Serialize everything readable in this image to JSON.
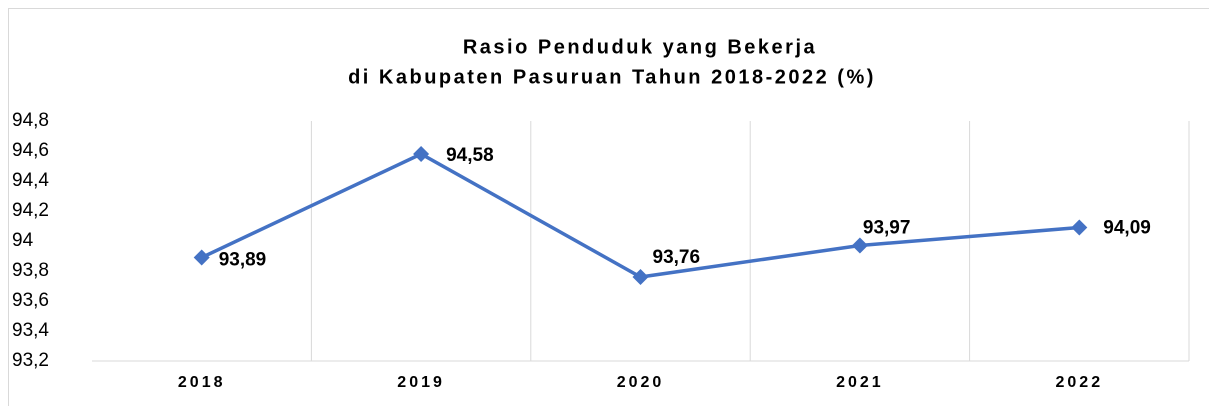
{
  "chart_data": {
    "type": "line",
    "title": [
      "Rasio Penduduk yang Bekerja",
      "di Kabupaten Pasuruan Tahun 2018-2022 (%)"
    ],
    "categories": [
      "2018",
      "2019",
      "2020",
      "2021",
      "2022"
    ],
    "series": [
      {
        "name": "Rasio Penduduk yang Bekerja",
        "color": "#4472c4",
        "values": [
          93.89,
          94.58,
          93.76,
          93.97,
          94.09
        ],
        "value_labels": [
          "93,89",
          "94,58",
          "93,76",
          "93,97",
          "94,09"
        ]
      }
    ],
    "ylim": [
      93.2,
      94.8
    ],
    "yticks": [
      {
        "value": 93.2,
        "label": "93,2"
      },
      {
        "value": 93.4,
        "label": "93,4"
      },
      {
        "value": 93.6,
        "label": "93,6"
      },
      {
        "value": 93.8,
        "label": "93,8"
      },
      94,
      {
        "value": 94.2,
        "label": "94,2"
      },
      {
        "value": 94.4,
        "label": "94,4"
      },
      {
        "value": 94.6,
        "label": "94,6"
      },
      {
        "value": 94.8,
        "label": "94,8"
      }
    ],
    "grid": false
  }
}
